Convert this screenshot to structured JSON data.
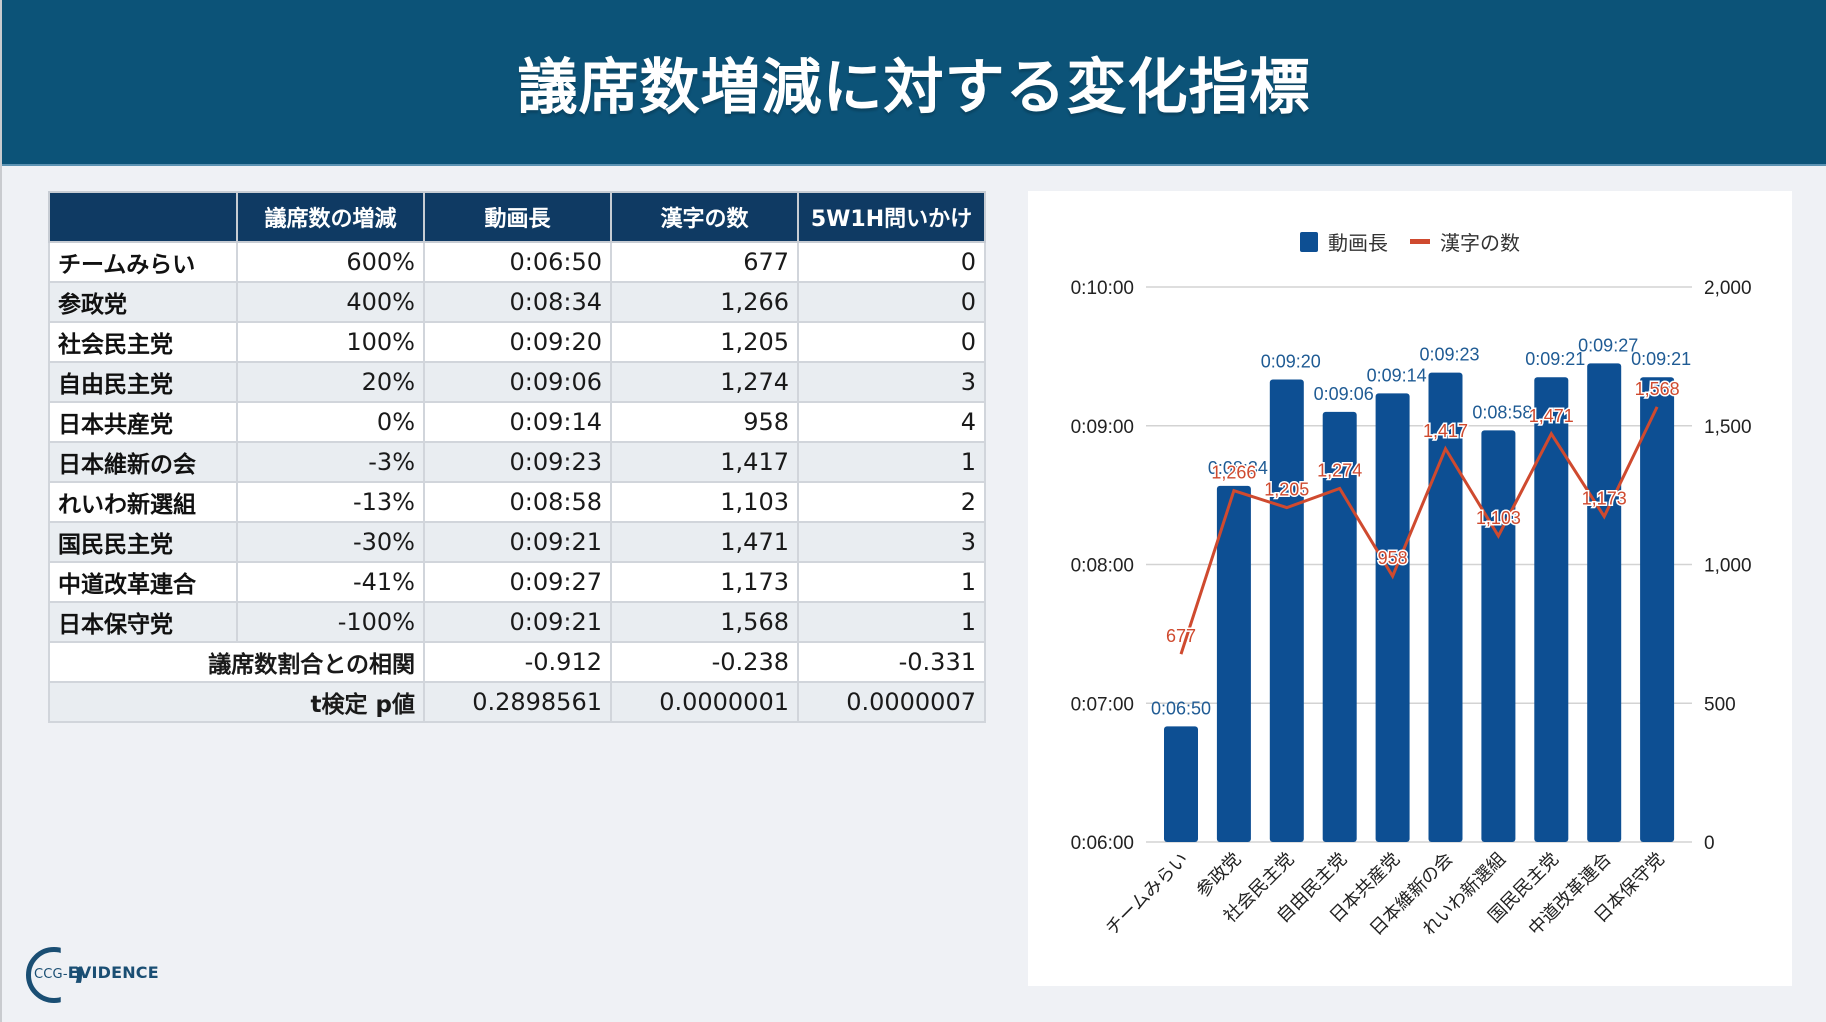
{
  "header": {
    "title": "議席数増減に対する変化指標"
  },
  "table": {
    "columns": [
      "",
      "議席数の増減",
      "動画長",
      "漢字の数",
      "5W1H問いかけ"
    ],
    "rows": [
      {
        "party": "チームみらい",
        "seat_change": "600%",
        "video_length": "0:06:50",
        "kanji_count": "677",
        "five_w1h": "0"
      },
      {
        "party": "参政党",
        "seat_change": "400%",
        "video_length": "0:08:34",
        "kanji_count": "1,266",
        "five_w1h": "0"
      },
      {
        "party": "社会民主党",
        "seat_change": "100%",
        "video_length": "0:09:20",
        "kanji_count": "1,205",
        "five_w1h": "0"
      },
      {
        "party": "自由民主党",
        "seat_change": "20%",
        "video_length": "0:09:06",
        "kanji_count": "1,274",
        "five_w1h": "3"
      },
      {
        "party": "日本共産党",
        "seat_change": "0%",
        "video_length": "0:09:14",
        "kanji_count": "958",
        "five_w1h": "4"
      },
      {
        "party": "日本維新の会",
        "seat_change": "-3%",
        "video_length": "0:09:23",
        "kanji_count": "1,417",
        "five_w1h": "1"
      },
      {
        "party": "れいわ新選組",
        "seat_change": "-13%",
        "video_length": "0:08:58",
        "kanji_count": "1,103",
        "five_w1h": "2"
      },
      {
        "party": "国民民主党",
        "seat_change": "-30%",
        "video_length": "0:09:21",
        "kanji_count": "1,471",
        "five_w1h": "3"
      },
      {
        "party": "中道改革連合",
        "seat_change": "-41%",
        "video_length": "0:09:27",
        "kanji_count": "1,173",
        "five_w1h": "1"
      },
      {
        "party": "日本保守党",
        "seat_change": "-100%",
        "video_length": "0:09:21",
        "kanji_count": "1,568",
        "five_w1h": "1"
      }
    ],
    "summary": [
      {
        "label": "議席数割合との相関",
        "video_length": "-0.912",
        "kanji_count": "-0.238",
        "five_w1h": "-0.331"
      },
      {
        "label": "t検定 p値",
        "video_length": "0.2898561",
        "kanji_count": "0.0000001",
        "five_w1h": "0.0000007"
      }
    ]
  },
  "chart_data": {
    "type": "bar+line",
    "title": "",
    "categories": [
      "チームみらい",
      "参政党",
      "社会民主党",
      "自由民主党",
      "日本共産党",
      "日本維新の会",
      "れいわ新選組",
      "国民民主党",
      "中道改革連合",
      "日本保守党"
    ],
    "series": [
      {
        "name": "動画長",
        "type": "bar",
        "axis": "left",
        "color": "#0d4f93",
        "values_seconds": [
          410,
          514,
          560,
          546,
          554,
          563,
          538,
          561,
          567,
          561
        ],
        "labels": [
          "0:06:50",
          "0:08:34",
          "0:09:20",
          "0:09:06",
          "0:09:14",
          "0:09:23",
          "0:08:58",
          "0:09:21",
          "0:09:27",
          "0:09:21"
        ]
      },
      {
        "name": "漢字の数",
        "type": "line",
        "axis": "right",
        "color": "#cf4a2f",
        "values": [
          677,
          1266,
          1205,
          1274,
          958,
          1417,
          1103,
          1471,
          1173,
          1568
        ],
        "labels": [
          "677",
          "1,266",
          "1,205",
          "1,274",
          "958",
          "1,417",
          "1,103",
          "1,471",
          "1,173",
          "1,568"
        ]
      }
    ],
    "left_axis": {
      "min_seconds": 360,
      "max_seconds": 600,
      "ticks": [
        "0:06:00",
        "0:07:00",
        "0:08:00",
        "0:09:00",
        "0:10:00"
      ]
    },
    "right_axis": {
      "min": 0,
      "max": 2000,
      "ticks": [
        "0",
        "500",
        "1,000",
        "1,500",
        "2,000"
      ]
    },
    "grid": true,
    "legend_position": "top",
    "xlabel": "",
    "ylabel": ""
  },
  "legend": {
    "bar_label": "動画長",
    "line_label": "漢字の数"
  },
  "logo": {
    "prefix": "CCG-",
    "name": "EVIDENCE"
  }
}
